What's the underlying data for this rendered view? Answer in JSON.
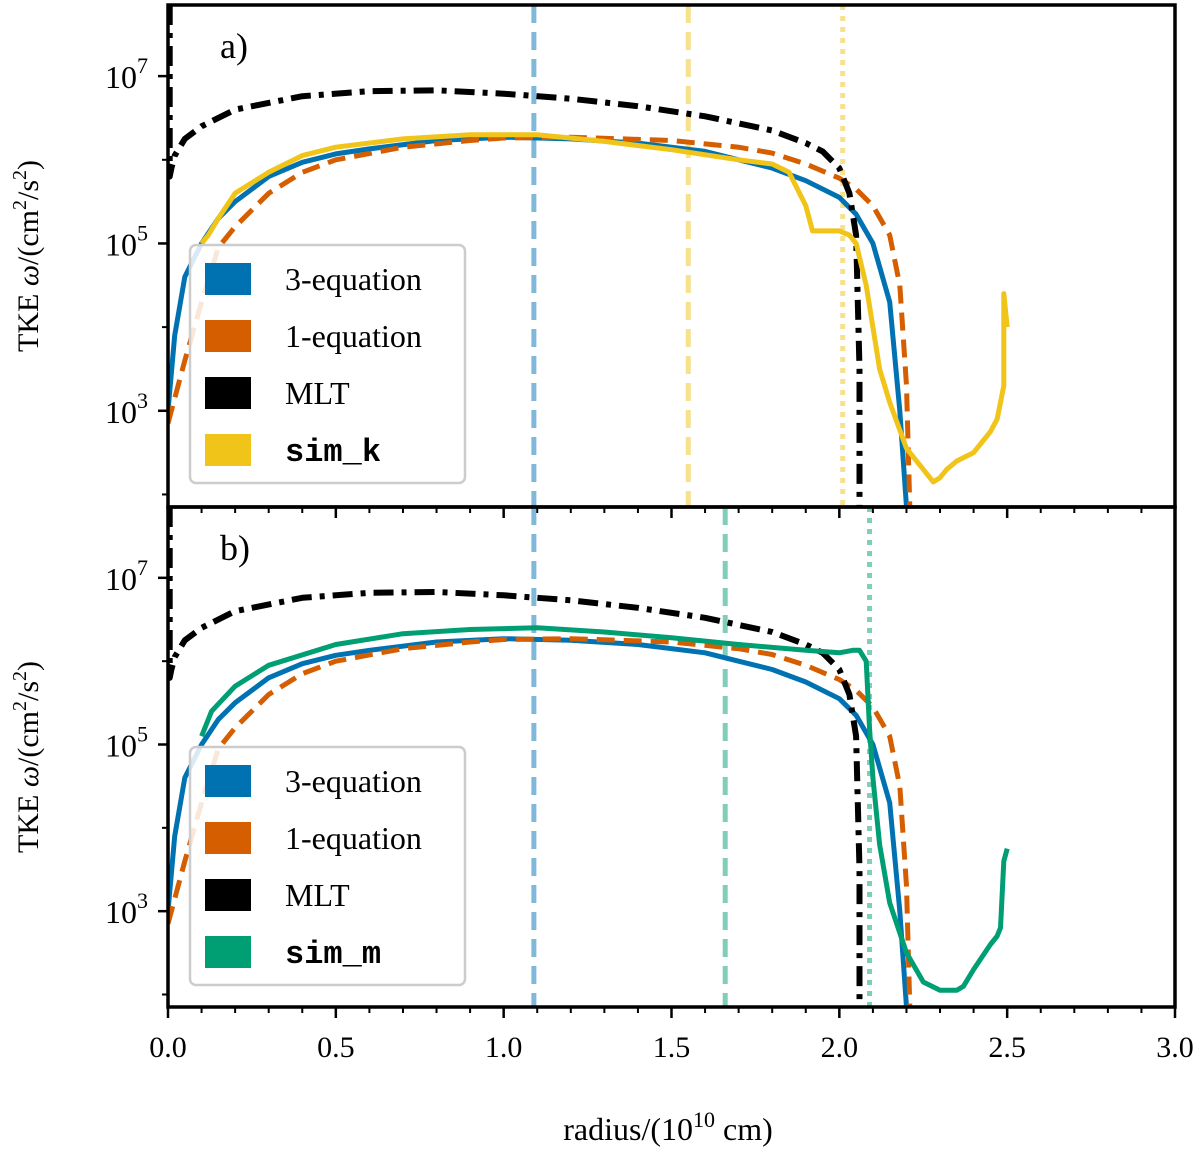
{
  "chart_data": {
    "type": "line",
    "xlabel": "radius/(10¹⁰ cm)",
    "xlabel_main": "radius/(10",
    "xlabel_exp": "10",
    "xlabel_tail": " cm)",
    "xlim": [
      0.0,
      3.0
    ],
    "xticks": [
      0.0,
      0.5,
      1.0,
      1.5,
      2.0,
      2.5,
      3.0
    ],
    "xtick_labels": [
      "0.0",
      "0.5",
      "1.0",
      "1.5",
      "2.0",
      "2.5",
      "3.0"
    ],
    "ylabel": "TKE ω/(cm²/s²)",
    "ylabel_prefix": "TKE ",
    "ylabel_omega": "ω",
    "ylabel_unit": "/(cm",
    "ylabel_sq": "2",
    "ylabel_mid": "/s",
    "ylabel_end": ")",
    "yscale": "log",
    "ylim_log10": [
      1.85,
      7.85
    ],
    "yticks_log10": [
      3,
      5,
      7
    ],
    "ytick_base": "10",
    "ytick_exps": [
      "3",
      "5",
      "7"
    ],
    "colors": {
      "three_eq": "#0072b2",
      "one_eq": "#d55e00",
      "mlt": "#000000",
      "sim_k": "#f0c419",
      "sim_m": "#009e73"
    },
    "panels": [
      {
        "label": "a)",
        "sim_key": "sim_k",
        "legend": [
          "3-equation",
          "1-equation",
          "MLT",
          "sim_k"
        ],
        "vlines": [
          {
            "x": 1.09,
            "color": "#0072b2",
            "style": "dashed"
          },
          {
            "x": 1.55,
            "color": "#f0c419",
            "style": "dashed"
          },
          {
            "x": 2.01,
            "color": "#f0c419",
            "style": "dotted"
          }
        ],
        "series": [
          {
            "name": "3-equation",
            "color": "#0072b2",
            "style": "solid",
            "x": [
              0.0,
              0.02,
              0.05,
              0.1,
              0.15,
              0.2,
              0.3,
              0.4,
              0.5,
              0.6,
              0.8,
              1.0,
              1.2,
              1.4,
              1.6,
              1.7,
              1.8,
              1.9,
              2.0,
              2.05,
              2.1,
              2.15,
              2.18,
              2.2
            ],
            "y": [
              3.0,
              3.9,
              4.6,
              5.0,
              5.3,
              5.5,
              5.8,
              5.97,
              6.07,
              6.13,
              6.23,
              6.27,
              6.25,
              6.2,
              6.1,
              6.0,
              5.9,
              5.75,
              5.55,
              5.35,
              5.0,
              4.3,
              3.0,
              1.85
            ]
          },
          {
            "name": "1-equation",
            "color": "#d55e00",
            "style": "dashed",
            "x": [
              0.0,
              0.05,
              0.1,
              0.15,
              0.2,
              0.3,
              0.4,
              0.5,
              0.7,
              0.9,
              1.0,
              1.2,
              1.5,
              1.7,
              1.8,
              1.9,
              2.0,
              2.05,
              2.1,
              2.15,
              2.18,
              2.2,
              2.21
            ],
            "y": [
              2.85,
              3.6,
              4.3,
              4.95,
              5.2,
              5.6,
              5.85,
              6.0,
              6.15,
              6.23,
              6.26,
              6.27,
              6.23,
              6.15,
              6.08,
              5.95,
              5.78,
              5.65,
              5.45,
              5.1,
              4.5,
              3.3,
              1.85
            ]
          },
          {
            "name": "MLT",
            "color": "#000000",
            "style": "dashdot",
            "x": [
              0.005,
              0.005,
              0.01,
              0.02,
              0.05,
              0.1,
              0.2,
              0.4,
              0.6,
              0.8,
              1.0,
              1.2,
              1.4,
              1.6,
              1.8,
              1.9,
              1.95,
              2.0,
              2.03,
              2.05,
              2.06,
              2.06
            ],
            "y": [
              7.85,
              5.8,
              5.9,
              6.05,
              6.25,
              6.4,
              6.6,
              6.76,
              6.82,
              6.83,
              6.79,
              6.73,
              6.64,
              6.52,
              6.35,
              6.2,
              6.1,
              5.9,
              5.6,
              5.1,
              3.5,
              1.85
            ]
          },
          {
            "name": "sim_k",
            "color": "#f0c419",
            "style": "solid",
            "x": [
              0.1,
              0.12,
              0.15,
              0.2,
              0.3,
              0.4,
              0.5,
              0.7,
              0.9,
              1.1,
              1.3,
              1.5,
              1.7,
              1.8,
              1.85,
              1.9,
              1.92,
              1.95,
              2.0,
              2.03,
              2.05,
              2.08,
              2.1,
              2.12,
              2.15,
              2.2,
              2.25,
              2.28,
              2.3,
              2.32,
              2.35,
              2.4,
              2.45,
              2.47,
              2.48,
              2.49,
              2.49,
              2.5
            ],
            "y": [
              5.0,
              5.1,
              5.3,
              5.6,
              5.85,
              6.05,
              6.15,
              6.25,
              6.3,
              6.3,
              6.22,
              6.12,
              6.0,
              5.95,
              5.85,
              5.45,
              5.15,
              5.15,
              5.15,
              5.1,
              5.0,
              4.5,
              4.0,
              3.5,
              3.1,
              2.55,
              2.3,
              2.15,
              2.2,
              2.3,
              2.4,
              2.5,
              2.75,
              2.9,
              3.1,
              3.3,
              4.4,
              4.0
            ]
          }
        ]
      },
      {
        "label": "b)",
        "sim_key": "sim_m",
        "legend": [
          "3-equation",
          "1-equation",
          "MLT",
          "sim_m"
        ],
        "vlines": [
          {
            "x": 1.09,
            "color": "#0072b2",
            "style": "dashed"
          },
          {
            "x": 1.66,
            "color": "#009e73",
            "style": "dashed"
          },
          {
            "x": 2.09,
            "color": "#009e73",
            "style": "dotted"
          }
        ],
        "series": [
          {
            "name": "3-equation",
            "color": "#0072b2",
            "style": "solid",
            "x": [
              0.0,
              0.02,
              0.05,
              0.1,
              0.15,
              0.2,
              0.3,
              0.4,
              0.5,
              0.6,
              0.8,
              1.0,
              1.2,
              1.4,
              1.6,
              1.7,
              1.8,
              1.9,
              2.0,
              2.05,
              2.1,
              2.15,
              2.18,
              2.2
            ],
            "y": [
              3.0,
              3.9,
              4.6,
              5.0,
              5.3,
              5.5,
              5.8,
              5.97,
              6.07,
              6.13,
              6.23,
              6.27,
              6.25,
              6.2,
              6.1,
              6.0,
              5.9,
              5.75,
              5.55,
              5.35,
              5.0,
              4.3,
              3.0,
              1.85
            ]
          },
          {
            "name": "1-equation",
            "color": "#d55e00",
            "style": "dashed",
            "x": [
              0.0,
              0.05,
              0.1,
              0.15,
              0.2,
              0.3,
              0.4,
              0.5,
              0.7,
              0.9,
              1.0,
              1.2,
              1.5,
              1.7,
              1.8,
              1.9,
              2.0,
              2.05,
              2.1,
              2.15,
              2.18,
              2.2,
              2.21
            ],
            "y": [
              2.85,
              3.6,
              4.3,
              4.95,
              5.2,
              5.6,
              5.85,
              6.0,
              6.15,
              6.23,
              6.26,
              6.27,
              6.23,
              6.15,
              6.08,
              5.95,
              5.78,
              5.65,
              5.45,
              5.1,
              4.5,
              3.3,
              1.85
            ]
          },
          {
            "name": "MLT",
            "color": "#000000",
            "style": "dashdot",
            "x": [
              0.005,
              0.005,
              0.01,
              0.02,
              0.05,
              0.1,
              0.2,
              0.4,
              0.6,
              0.8,
              1.0,
              1.2,
              1.4,
              1.6,
              1.8,
              1.9,
              1.95,
              2.0,
              2.03,
              2.05,
              2.06,
              2.06
            ],
            "y": [
              7.85,
              5.8,
              5.9,
              6.05,
              6.25,
              6.4,
              6.6,
              6.76,
              6.82,
              6.83,
              6.79,
              6.73,
              6.64,
              6.52,
              6.35,
              6.2,
              6.1,
              5.9,
              5.6,
              5.1,
              3.5,
              1.85
            ]
          },
          {
            "name": "sim_m",
            "color": "#009e73",
            "style": "solid",
            "x": [
              0.1,
              0.13,
              0.2,
              0.3,
              0.5,
              0.7,
              0.9,
              1.1,
              1.3,
              1.5,
              1.7,
              1.9,
              2.0,
              2.04,
              2.06,
              2.08,
              2.09,
              2.1,
              2.12,
              2.15,
              2.2,
              2.25,
              2.3,
              2.35,
              2.37,
              2.4,
              2.45,
              2.47,
              2.48,
              2.49,
              2.5
            ],
            "y": [
              5.1,
              5.4,
              5.7,
              5.95,
              6.2,
              6.33,
              6.38,
              6.4,
              6.35,
              6.28,
              6.2,
              6.13,
              6.1,
              6.13,
              6.13,
              6.0,
              5.2,
              4.6,
              3.8,
              3.1,
              2.5,
              2.15,
              2.05,
              2.05,
              2.1,
              2.3,
              2.6,
              2.7,
              2.8,
              3.6,
              3.75
            ]
          }
        ]
      }
    ]
  }
}
